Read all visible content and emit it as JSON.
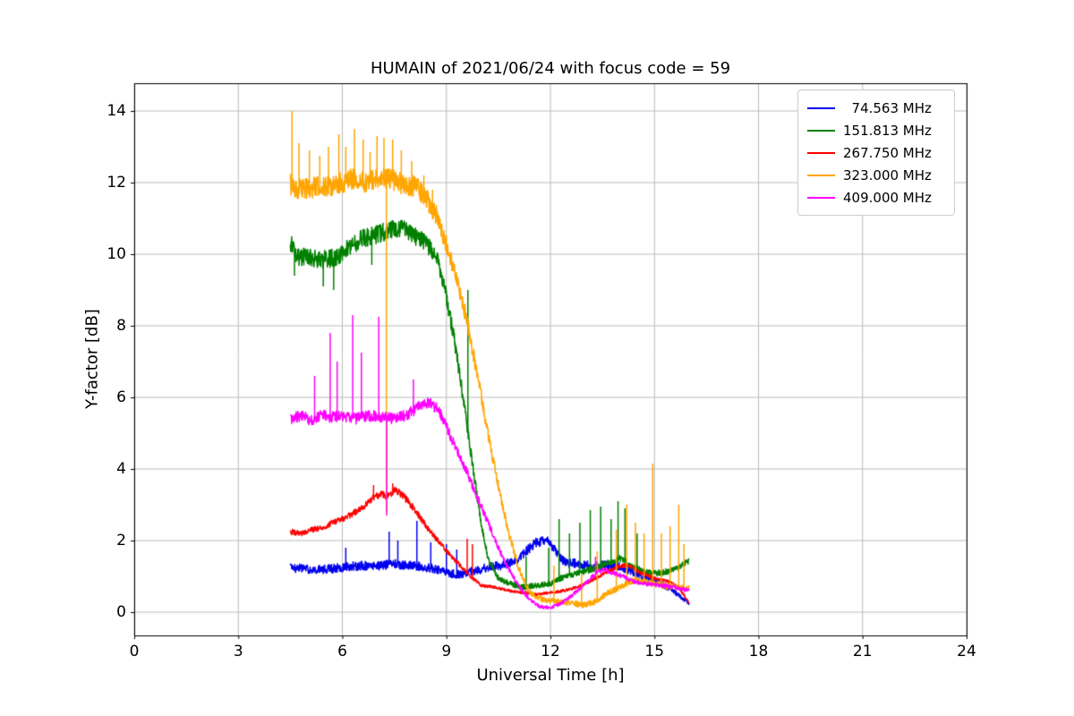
{
  "chart_data": {
    "type": "line",
    "title": "HUMAIN of 2021/06/24 with focus code = 59",
    "xlabel": "Universal Time [h]",
    "ylabel": "Y-factor [dB]",
    "xlim": [
      0,
      24
    ],
    "ylim": [
      -0.65,
      14.775
    ],
    "xticks": [
      0,
      3,
      6,
      9,
      12,
      15,
      18,
      21,
      24
    ],
    "yticks": [
      0,
      2,
      4,
      6,
      8,
      10,
      12,
      14
    ],
    "grid": true,
    "grid_color": "#bbbbbb",
    "legend_position": "upper right",
    "series": [
      {
        "name": "  74.563 MHz",
        "color": "#0000ee",
        "noise": 0.13,
        "yref": 1.3,
        "seed": 11,
        "x": [
          4.5,
          5.0,
          5.5,
          6.0,
          6.5,
          7.0,
          7.5,
          8.0,
          8.5,
          9.0,
          9.4,
          9.8,
          10.2,
          10.6,
          11.0,
          11.3,
          11.6,
          11.9,
          12.1,
          12.4,
          12.8,
          13.2,
          13.6,
          14.0,
          14.4,
          14.8,
          15.2,
          15.6,
          16.0
        ],
        "y": [
          1.25,
          1.2,
          1.2,
          1.25,
          1.3,
          1.3,
          1.35,
          1.3,
          1.25,
          1.1,
          1.05,
          1.15,
          1.25,
          1.3,
          1.45,
          1.7,
          1.95,
          2.0,
          1.8,
          1.4,
          1.35,
          1.3,
          1.3,
          1.3,
          1.1,
          0.95,
          0.8,
          0.55,
          0.25
        ],
        "spikes": [
          [
            6.1,
            1.8
          ],
          [
            7.35,
            2.25
          ],
          [
            7.6,
            2.0
          ],
          [
            8.15,
            2.55
          ],
          [
            8.55,
            1.95
          ],
          [
            9.0,
            1.9
          ],
          [
            9.3,
            1.75
          ]
        ]
      },
      {
        "name": "151.813 MHz",
        "color": "#008000",
        "noise": 0.26,
        "yref": 10,
        "seed": 22,
        "x": [
          4.5,
          4.7,
          5.0,
          5.4,
          5.8,
          6.2,
          6.6,
          7.0,
          7.4,
          7.8,
          8.1,
          8.4,
          8.7,
          9.0,
          9.2,
          9.4,
          9.6,
          9.8,
          10.0,
          10.2,
          10.5,
          10.8,
          11.2,
          11.6,
          12.0,
          12.4,
          12.8,
          13.2,
          13.6,
          14.0,
          14.4,
          14.8,
          15.2,
          15.6,
          16.0
        ],
        "y": [
          10.35,
          9.95,
          9.9,
          9.85,
          9.9,
          10.2,
          10.45,
          10.55,
          10.7,
          10.75,
          10.5,
          10.3,
          10.0,
          8.8,
          7.8,
          6.5,
          5.2,
          3.8,
          2.5,
          1.5,
          0.95,
          0.8,
          0.7,
          0.75,
          0.8,
          1.0,
          1.1,
          1.2,
          1.35,
          1.5,
          1.25,
          1.1,
          1.1,
          1.2,
          1.45
        ],
        "spikes": [
          [
            4.62,
            9.4
          ],
          [
            5.45,
            9.1
          ],
          [
            5.75,
            9.0
          ],
          [
            6.85,
            9.7
          ],
          [
            9.62,
            9.0
          ],
          [
            11.3,
            1.55
          ],
          [
            11.95,
            1.8
          ],
          [
            12.25,
            2.6
          ],
          [
            12.55,
            2.2
          ],
          [
            12.85,
            2.5
          ],
          [
            13.15,
            2.85
          ],
          [
            13.45,
            2.95
          ],
          [
            13.75,
            2.6
          ],
          [
            13.95,
            3.1
          ],
          [
            14.15,
            2.9
          ],
          [
            14.5,
            2.2
          ]
        ]
      },
      {
        "name": "267.750 MHz",
        "color": "#ff0000",
        "noise": 0.1,
        "yref": 3.2,
        "seed": 33,
        "x": [
          4.5,
          4.8,
          5.1,
          5.4,
          5.7,
          6.0,
          6.3,
          6.6,
          6.9,
          7.1,
          7.3,
          7.5,
          7.7,
          7.9,
          8.2,
          8.5,
          8.8,
          9.1,
          9.4,
          9.7,
          10.0,
          10.4,
          10.8,
          11.2,
          11.6,
          12.0,
          12.4,
          12.8,
          13.2,
          13.6,
          14.0,
          14.3,
          14.6,
          15.0,
          15.4,
          15.7,
          16.0
        ],
        "y": [
          2.25,
          2.2,
          2.3,
          2.35,
          2.5,
          2.6,
          2.75,
          2.95,
          3.2,
          3.3,
          3.25,
          3.4,
          3.3,
          3.1,
          2.7,
          2.3,
          1.95,
          1.6,
          1.3,
          1.0,
          0.75,
          0.7,
          0.6,
          0.55,
          0.5,
          0.55,
          0.6,
          0.7,
          0.9,
          1.1,
          1.3,
          1.3,
          1.1,
          0.95,
          0.85,
          0.7,
          0.25
        ],
        "spikes": [
          [
            6.9,
            3.55
          ],
          [
            7.45,
            3.6
          ],
          [
            9.6,
            2.05
          ],
          [
            9.75,
            1.9
          ]
        ]
      },
      {
        "name": "323.000 MHz",
        "color": "#ffa500",
        "noise": 0.3,
        "yref": 12,
        "seed": 44,
        "x": [
          4.5,
          4.8,
          5.1,
          5.4,
          5.7,
          6.0,
          6.3,
          6.6,
          6.9,
          7.2,
          7.5,
          7.8,
          8.1,
          8.4,
          8.7,
          9.0,
          9.3,
          9.6,
          9.9,
          10.2,
          10.5,
          10.8,
          11.1,
          11.4,
          11.8,
          12.2,
          12.6,
          13.0,
          13.3,
          13.6,
          14.0,
          14.4,
          14.8,
          15.2,
          15.6,
          16.0
        ],
        "y": [
          11.95,
          11.8,
          11.85,
          11.9,
          11.9,
          12.0,
          12.1,
          12.0,
          12.1,
          12.15,
          12.05,
          11.95,
          11.9,
          11.6,
          11.1,
          10.3,
          9.3,
          8.1,
          6.6,
          5.0,
          3.5,
          2.2,
          1.2,
          0.55,
          0.35,
          0.3,
          0.25,
          0.2,
          0.3,
          0.5,
          0.7,
          0.9,
          0.85,
          0.75,
          0.7,
          0.65
        ],
        "spikes": [
          [
            4.55,
            14.0
          ],
          [
            4.75,
            13.1
          ],
          [
            5.05,
            12.9
          ],
          [
            5.35,
            12.75
          ],
          [
            5.6,
            13.0
          ],
          [
            5.9,
            13.35
          ],
          [
            6.1,
            13.0
          ],
          [
            6.35,
            13.5
          ],
          [
            6.6,
            13.2
          ],
          [
            6.8,
            12.85
          ],
          [
            7.0,
            13.3
          ],
          [
            7.2,
            13.25
          ],
          [
            7.27,
            2.8
          ],
          [
            7.45,
            13.2
          ],
          [
            7.7,
            12.9
          ],
          [
            8.0,
            12.6
          ],
          [
            8.35,
            12.2
          ],
          [
            8.6,
            11.8
          ],
          [
            12.1,
            1.3
          ],
          [
            12.9,
            1.05
          ],
          [
            13.35,
            1.7
          ],
          [
            13.9,
            2.3
          ],
          [
            14.2,
            3.0
          ],
          [
            14.45,
            2.5
          ],
          [
            14.7,
            2.2
          ],
          [
            14.95,
            4.15
          ],
          [
            15.2,
            2.2
          ],
          [
            15.45,
            2.4
          ],
          [
            15.7,
            3.0
          ],
          [
            15.85,
            1.9
          ]
        ]
      },
      {
        "name": "409.000 MHz",
        "color": "#ff00ff",
        "noise": 0.16,
        "yref": 5.5,
        "seed": 55,
        "x": [
          4.5,
          4.8,
          5.1,
          5.4,
          5.7,
          6.0,
          6.3,
          6.6,
          6.9,
          7.2,
          7.5,
          7.8,
          8.0,
          8.2,
          8.4,
          8.6,
          8.8,
          9.0,
          9.3,
          9.6,
          9.9,
          10.2,
          10.5,
          10.8,
          11.1,
          11.4,
          11.7,
          12.0,
          12.3,
          12.6,
          12.9,
          13.2,
          13.5,
          13.8,
          14.1,
          14.4,
          14.8,
          15.2,
          15.6,
          16.0
        ],
        "y": [
          5.4,
          5.5,
          5.35,
          5.5,
          5.45,
          5.5,
          5.4,
          5.45,
          5.5,
          5.45,
          5.4,
          5.5,
          5.6,
          5.75,
          5.85,
          5.8,
          5.6,
          5.2,
          4.5,
          3.9,
          3.2,
          2.5,
          1.8,
          1.2,
          0.7,
          0.35,
          0.15,
          0.12,
          0.25,
          0.45,
          0.7,
          1.0,
          1.2,
          1.1,
          1.0,
          0.85,
          0.78,
          0.75,
          0.7,
          0.6
        ],
        "spikes": [
          [
            5.2,
            6.6
          ],
          [
            5.65,
            7.8
          ],
          [
            5.85,
            7.0
          ],
          [
            6.3,
            8.3
          ],
          [
            6.55,
            7.25
          ],
          [
            7.05,
            8.25
          ],
          [
            7.28,
            2.7
          ],
          [
            8.05,
            6.5
          ],
          [
            13.3,
            1.55
          ]
        ]
      }
    ]
  }
}
